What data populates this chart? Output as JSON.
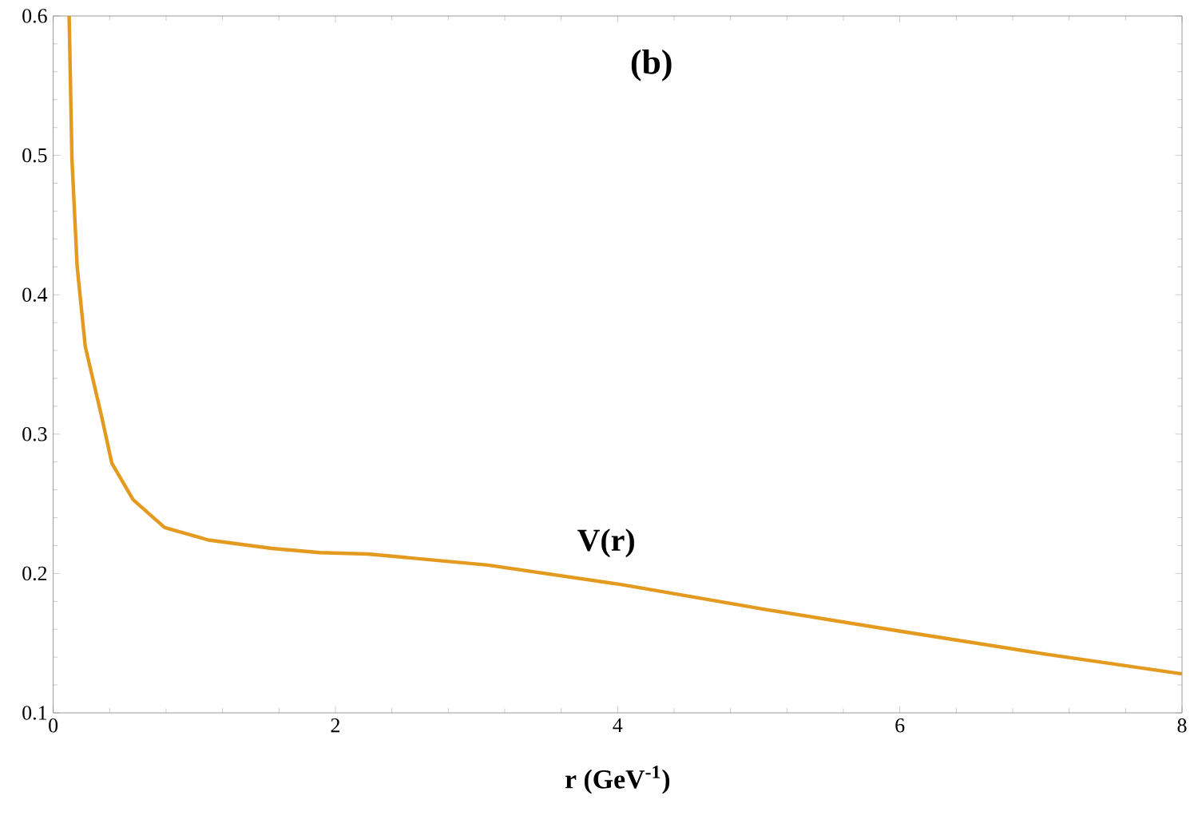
{
  "chart_data": {
    "type": "line",
    "xlabel": "r (GeV$^{-1}$)",
    "annotations": [
      "(b)",
      "V(r)"
    ],
    "x": [
      0.113,
      0.133,
      0.17,
      0.227,
      0.34,
      0.416,
      0.566,
      0.79,
      1.1,
      1.55,
      1.89,
      2.23,
      3.08,
      4.03,
      5.06,
      6.04,
      7.04,
      8.0
    ],
    "series": [
      {
        "color": "#e39a1f",
        "values": [
          0.6,
          0.497,
          0.42,
          0.363,
          0.314,
          0.279,
          0.253,
          0.233,
          0.224,
          0.218,
          0.215,
          0.214,
          0.206,
          0.192,
          0.174,
          0.158,
          0.142,
          0.128
        ]
      }
    ],
    "xlim": [
      0,
      8
    ],
    "ylim": [
      0.1,
      0.6
    ],
    "xticks": [
      0,
      2,
      4,
      6,
      8
    ],
    "yticks": [
      0.1,
      0.2,
      0.3,
      0.4,
      0.5,
      0.6
    ],
    "grid": false,
    "marker": "none",
    "line_style": "solid"
  }
}
